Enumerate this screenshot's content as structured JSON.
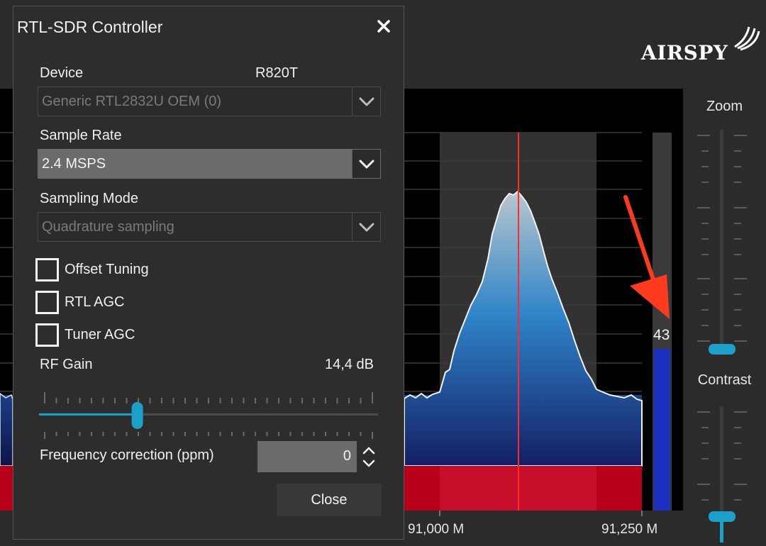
{
  "brand": {
    "logo_text": "AIRSPY"
  },
  "axis": {
    "labels": [
      "91,000 M",
      "91,250 M"
    ]
  },
  "right_panel": {
    "zoom_label": "Zoom",
    "contrast_label": "Contrast"
  },
  "level_meter": {
    "value": "43",
    "fill_color": "#1a2fc0"
  },
  "dialog": {
    "title": "RTL-SDR Controller",
    "device_label": "Device",
    "tuner_name": "R820T",
    "device_value": "Generic RTL2832U OEM (0)",
    "sample_rate_label": "Sample Rate",
    "sample_rate_value": "2.4 MSPS",
    "sampling_mode_label": "Sampling Mode",
    "sampling_mode_value": "Quadrature sampling",
    "offset_tuning_label": "Offset Tuning",
    "rtl_agc_label": "RTL AGC",
    "tuner_agc_label": "Tuner AGC",
    "rf_gain_label": "RF Gain",
    "rf_gain_value": "14,4 dB",
    "rf_gain_level": 0.29,
    "freq_corr_label": "Frequency correction (ppm)",
    "freq_corr_value": "0",
    "close_label": "Close"
  },
  "colors": {
    "accent": "#1ba1c9",
    "tuner_marker": "#ff2a2a",
    "annotation_arrow": "#ff3b1f"
  }
}
